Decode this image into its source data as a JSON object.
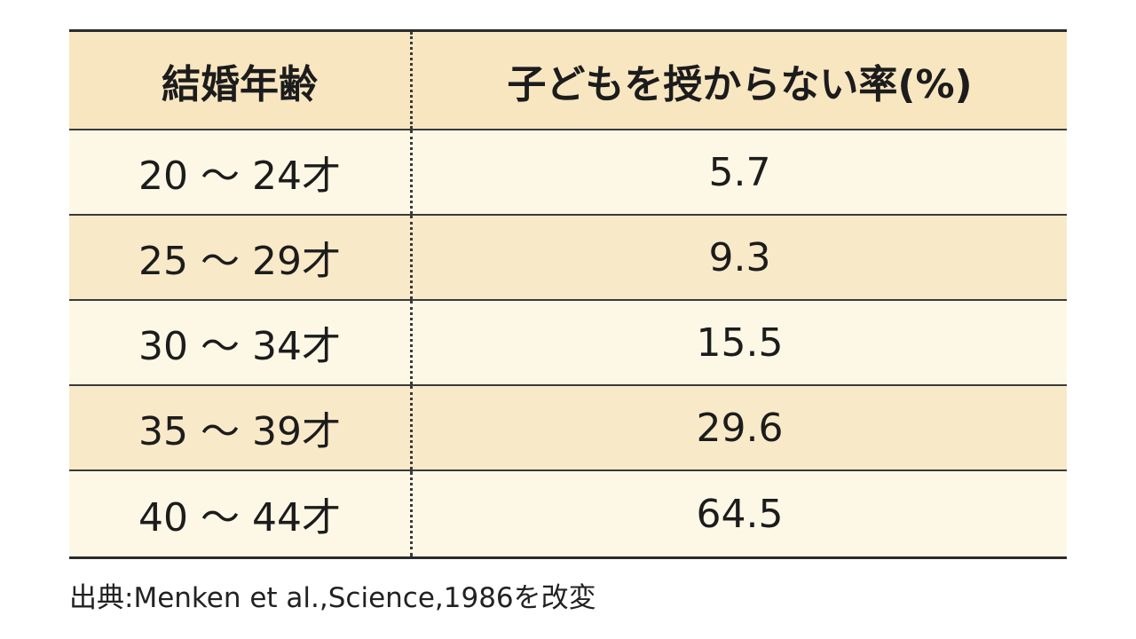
{
  "table": {
    "header": [
      "結婚年齢",
      "子どもを授からない率(%)"
    ],
    "rows": [
      [
        "20 〜 24才",
        5.7
      ],
      [
        "25 〜 29才",
        9.3
      ],
      [
        "30 〜 34才",
        15.5
      ],
      [
        "35 〜 39才",
        29.6
      ],
      [
        "40 〜 44才",
        64.5
      ]
    ]
  },
  "source": "出典:Menken et al.,Science,1986を改変"
}
